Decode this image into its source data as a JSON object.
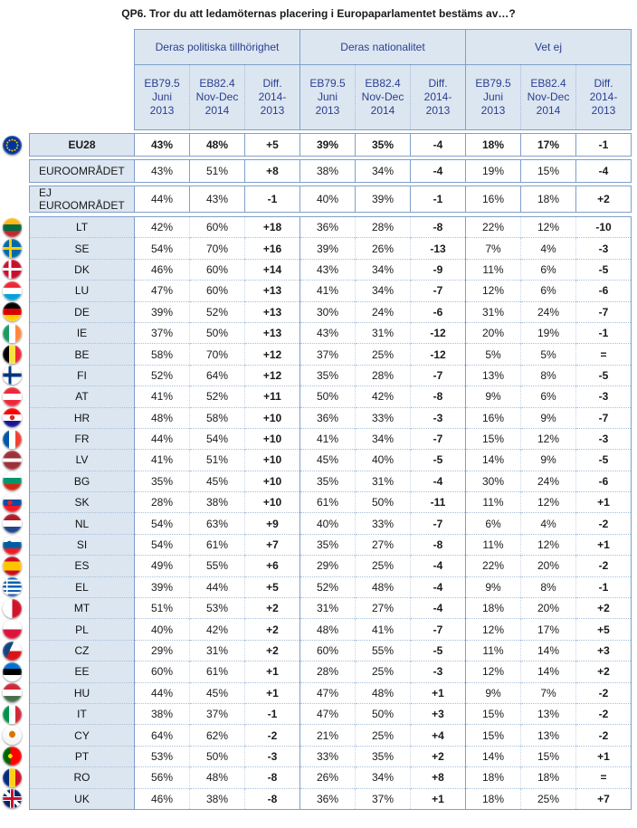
{
  "title": "QP6. Tror du att ledamöternas placering i Europaparlamentet bestäms av…?",
  "groups": [
    "Deras politiska tillhörighet",
    "Deras nationalitet",
    "Vet ej"
  ],
  "subheaders": [
    "EB79.5\nJuni\n2013",
    "EB82.4\nNov-Dec\n2014",
    "Diff.\n2014-\n2013"
  ],
  "summary_rows": [
    {
      "label": "EU28",
      "flag": "eu",
      "v": [
        "43%",
        "48%",
        "+5",
        "39%",
        "35%",
        "-4",
        "18%",
        "17%",
        "-1"
      ]
    },
    {
      "label": "EUROOMRÅDET",
      "v": [
        "43%",
        "51%",
        "+8",
        "38%",
        "34%",
        "-4",
        "19%",
        "15%",
        "-4"
      ]
    },
    {
      "label": "EJ EUROOMRÅDET",
      "v": [
        "44%",
        "43%",
        "-1",
        "40%",
        "39%",
        "-1",
        "16%",
        "18%",
        "+2"
      ]
    }
  ],
  "country_rows": [
    {
      "label": "LT",
      "flag": "lt",
      "v": [
        "42%",
        "60%",
        "+18",
        "36%",
        "28%",
        "-8",
        "22%",
        "12%",
        "-10"
      ]
    },
    {
      "label": "SE",
      "flag": "se",
      "v": [
        "54%",
        "70%",
        "+16",
        "39%",
        "26%",
        "-13",
        "7%",
        "4%",
        "-3"
      ]
    },
    {
      "label": "DK",
      "flag": "dk",
      "v": [
        "46%",
        "60%",
        "+14",
        "43%",
        "34%",
        "-9",
        "11%",
        "6%",
        "-5"
      ]
    },
    {
      "label": "LU",
      "flag": "lu",
      "v": [
        "47%",
        "60%",
        "+13",
        "41%",
        "34%",
        "-7",
        "12%",
        "6%",
        "-6"
      ]
    },
    {
      "label": "DE",
      "flag": "de",
      "v": [
        "39%",
        "52%",
        "+13",
        "30%",
        "24%",
        "-6",
        "31%",
        "24%",
        "-7"
      ]
    },
    {
      "label": "IE",
      "flag": "ie",
      "v": [
        "37%",
        "50%",
        "+13",
        "43%",
        "31%",
        "-12",
        "20%",
        "19%",
        "-1"
      ]
    },
    {
      "label": "BE",
      "flag": "be",
      "v": [
        "58%",
        "70%",
        "+12",
        "37%",
        "25%",
        "-12",
        "5%",
        "5%",
        "="
      ]
    },
    {
      "label": "FI",
      "flag": "fi",
      "v": [
        "52%",
        "64%",
        "+12",
        "35%",
        "28%",
        "-7",
        "13%",
        "8%",
        "-5"
      ]
    },
    {
      "label": "AT",
      "flag": "at",
      "v": [
        "41%",
        "52%",
        "+11",
        "50%",
        "42%",
        "-8",
        "9%",
        "6%",
        "-3"
      ]
    },
    {
      "label": "HR",
      "flag": "hr",
      "v": [
        "48%",
        "58%",
        "+10",
        "36%",
        "33%",
        "-3",
        "16%",
        "9%",
        "-7"
      ]
    },
    {
      "label": "FR",
      "flag": "fr",
      "v": [
        "44%",
        "54%",
        "+10",
        "41%",
        "34%",
        "-7",
        "15%",
        "12%",
        "-3"
      ]
    },
    {
      "label": "LV",
      "flag": "lv",
      "v": [
        "41%",
        "51%",
        "+10",
        "45%",
        "40%",
        "-5",
        "14%",
        "9%",
        "-5"
      ]
    },
    {
      "label": "BG",
      "flag": "bg",
      "v": [
        "35%",
        "45%",
        "+10",
        "35%",
        "31%",
        "-4",
        "30%",
        "24%",
        "-6"
      ]
    },
    {
      "label": "SK",
      "flag": "sk",
      "v": [
        "28%",
        "38%",
        "+10",
        "61%",
        "50%",
        "-11",
        "11%",
        "12%",
        "+1"
      ]
    },
    {
      "label": "NL",
      "flag": "nl",
      "v": [
        "54%",
        "63%",
        "+9",
        "40%",
        "33%",
        "-7",
        "6%",
        "4%",
        "-2"
      ]
    },
    {
      "label": "SI",
      "flag": "si",
      "v": [
        "54%",
        "61%",
        "+7",
        "35%",
        "27%",
        "-8",
        "11%",
        "12%",
        "+1"
      ]
    },
    {
      "label": "ES",
      "flag": "es",
      "v": [
        "49%",
        "55%",
        "+6",
        "29%",
        "25%",
        "-4",
        "22%",
        "20%",
        "-2"
      ]
    },
    {
      "label": "EL",
      "flag": "el",
      "v": [
        "39%",
        "44%",
        "+5",
        "52%",
        "48%",
        "-4",
        "9%",
        "8%",
        "-1"
      ]
    },
    {
      "label": "MT",
      "flag": "mt",
      "v": [
        "51%",
        "53%",
        "+2",
        "31%",
        "27%",
        "-4",
        "18%",
        "20%",
        "+2"
      ]
    },
    {
      "label": "PL",
      "flag": "pl",
      "v": [
        "40%",
        "42%",
        "+2",
        "48%",
        "41%",
        "-7",
        "12%",
        "17%",
        "+5"
      ]
    },
    {
      "label": "CZ",
      "flag": "cz",
      "v": [
        "29%",
        "31%",
        "+2",
        "60%",
        "55%",
        "-5",
        "11%",
        "14%",
        "+3"
      ]
    },
    {
      "label": "EE",
      "flag": "ee",
      "v": [
        "60%",
        "61%",
        "+1",
        "28%",
        "25%",
        "-3",
        "12%",
        "14%",
        "+2"
      ]
    },
    {
      "label": "HU",
      "flag": "hu",
      "v": [
        "44%",
        "45%",
        "+1",
        "47%",
        "48%",
        "+1",
        "9%",
        "7%",
        "-2"
      ]
    },
    {
      "label": "IT",
      "flag": "it",
      "v": [
        "38%",
        "37%",
        "-1",
        "47%",
        "50%",
        "+3",
        "15%",
        "13%",
        "-2"
      ]
    },
    {
      "label": "CY",
      "flag": "cy",
      "v": [
        "64%",
        "62%",
        "-2",
        "21%",
        "25%",
        "+4",
        "15%",
        "13%",
        "-2"
      ]
    },
    {
      "label": "PT",
      "flag": "pt",
      "v": [
        "53%",
        "50%",
        "-3",
        "33%",
        "35%",
        "+2",
        "14%",
        "15%",
        "+1"
      ]
    },
    {
      "label": "RO",
      "flag": "ro",
      "v": [
        "56%",
        "48%",
        "-8",
        "26%",
        "34%",
        "+8",
        "18%",
        "18%",
        "="
      ]
    },
    {
      "label": "UK",
      "flag": "uk",
      "v": [
        "46%",
        "38%",
        "-8",
        "36%",
        "37%",
        "+1",
        "18%",
        "25%",
        "+7"
      ]
    }
  ]
}
